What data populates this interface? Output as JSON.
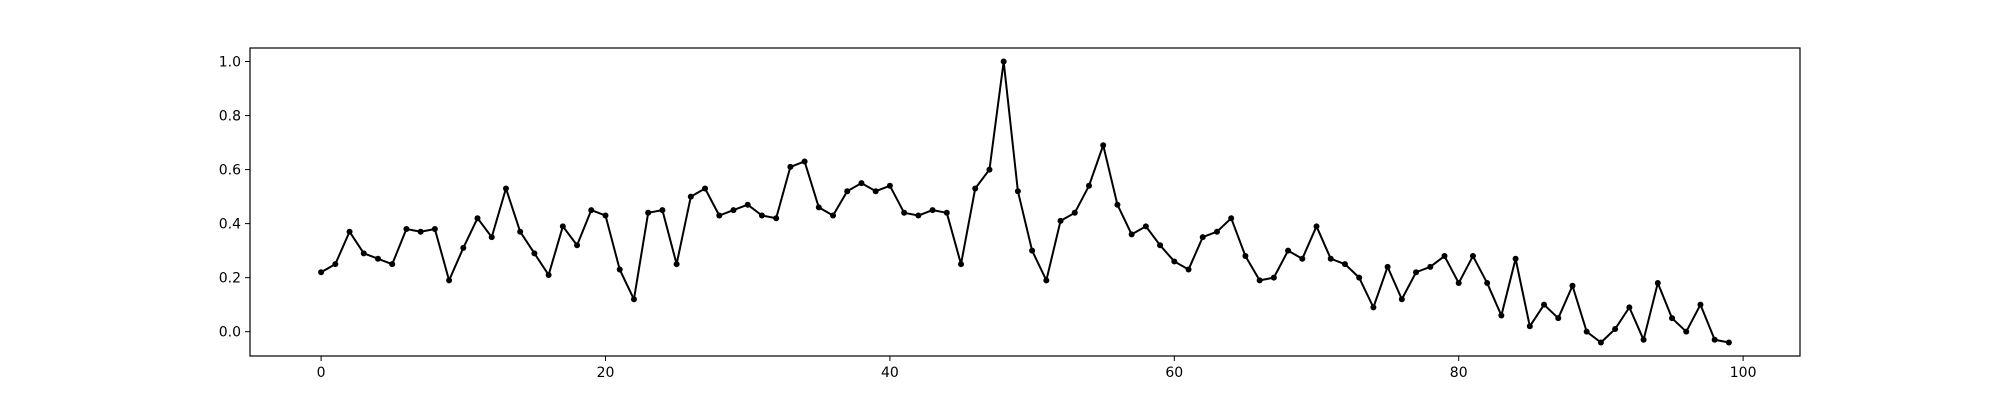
{
  "chart_data": {
    "type": "line",
    "title": "",
    "xlabel": "",
    "ylabel": "",
    "xlim": [
      -5,
      104
    ],
    "ylim": [
      -0.09,
      1.05
    ],
    "xticks": [
      0,
      20,
      40,
      60,
      80,
      100
    ],
    "xtick_labels": [
      "0",
      "20",
      "40",
      "60",
      "80",
      "100"
    ],
    "yticks": [
      0.0,
      0.2,
      0.4,
      0.6,
      0.8,
      1.0
    ],
    "ytick_labels": [
      "0.0",
      "0.2",
      "0.4",
      "0.6",
      "0.8",
      "1.0"
    ],
    "grid": false,
    "legend": "none",
    "series": [
      {
        "color": "#000000",
        "marker": "circle",
        "x": [
          0,
          1,
          2,
          3,
          4,
          5,
          6,
          7,
          8,
          9,
          10,
          11,
          12,
          13,
          14,
          15,
          16,
          17,
          18,
          19,
          20,
          21,
          22,
          23,
          24,
          25,
          26,
          27,
          28,
          29,
          30,
          31,
          32,
          33,
          34,
          35,
          36,
          37,
          38,
          39,
          40,
          41,
          42,
          43,
          44,
          45,
          46,
          47,
          48,
          49,
          50,
          51,
          52,
          53,
          54,
          55,
          56,
          57,
          58,
          59,
          60,
          61,
          62,
          63,
          64,
          65,
          66,
          67,
          68,
          69,
          70,
          71,
          72,
          73,
          74,
          75,
          76,
          77,
          78,
          79,
          80,
          81,
          82,
          83,
          84,
          85,
          86,
          87,
          88,
          89,
          90,
          91,
          92,
          93,
          94,
          95,
          96,
          97,
          98,
          99
        ],
        "y": [
          0.22,
          0.25,
          0.37,
          0.29,
          0.27,
          0.25,
          0.38,
          0.37,
          0.38,
          0.19,
          0.31,
          0.42,
          0.35,
          0.53,
          0.37,
          0.29,
          0.21,
          0.39,
          0.32,
          0.45,
          0.43,
          0.23,
          0.12,
          0.44,
          0.45,
          0.25,
          0.5,
          0.53,
          0.43,
          0.45,
          0.47,
          0.43,
          0.42,
          0.61,
          0.63,
          0.46,
          0.43,
          0.52,
          0.55,
          0.52,
          0.54,
          0.44,
          0.43,
          0.45,
          0.44,
          0.25,
          0.53,
          0.6,
          1.0,
          0.52,
          0.3,
          0.19,
          0.41,
          0.44,
          0.54,
          0.69,
          0.47,
          0.36,
          0.39,
          0.32,
          0.26,
          0.23,
          0.35,
          0.37,
          0.42,
          0.28,
          0.19,
          0.2,
          0.3,
          0.27,
          0.39,
          0.27,
          0.25,
          0.2,
          0.09,
          0.24,
          0.12,
          0.22,
          0.24,
          0.28,
          0.18,
          0.28,
          0.18,
          0.06,
          0.27,
          0.02,
          0.1,
          0.05,
          0.17,
          0.0,
          -0.04,
          0.01,
          0.09,
          -0.03,
          0.18,
          0.05,
          0.0,
          0.1,
          -0.03,
          -0.04
        ]
      }
    ]
  }
}
